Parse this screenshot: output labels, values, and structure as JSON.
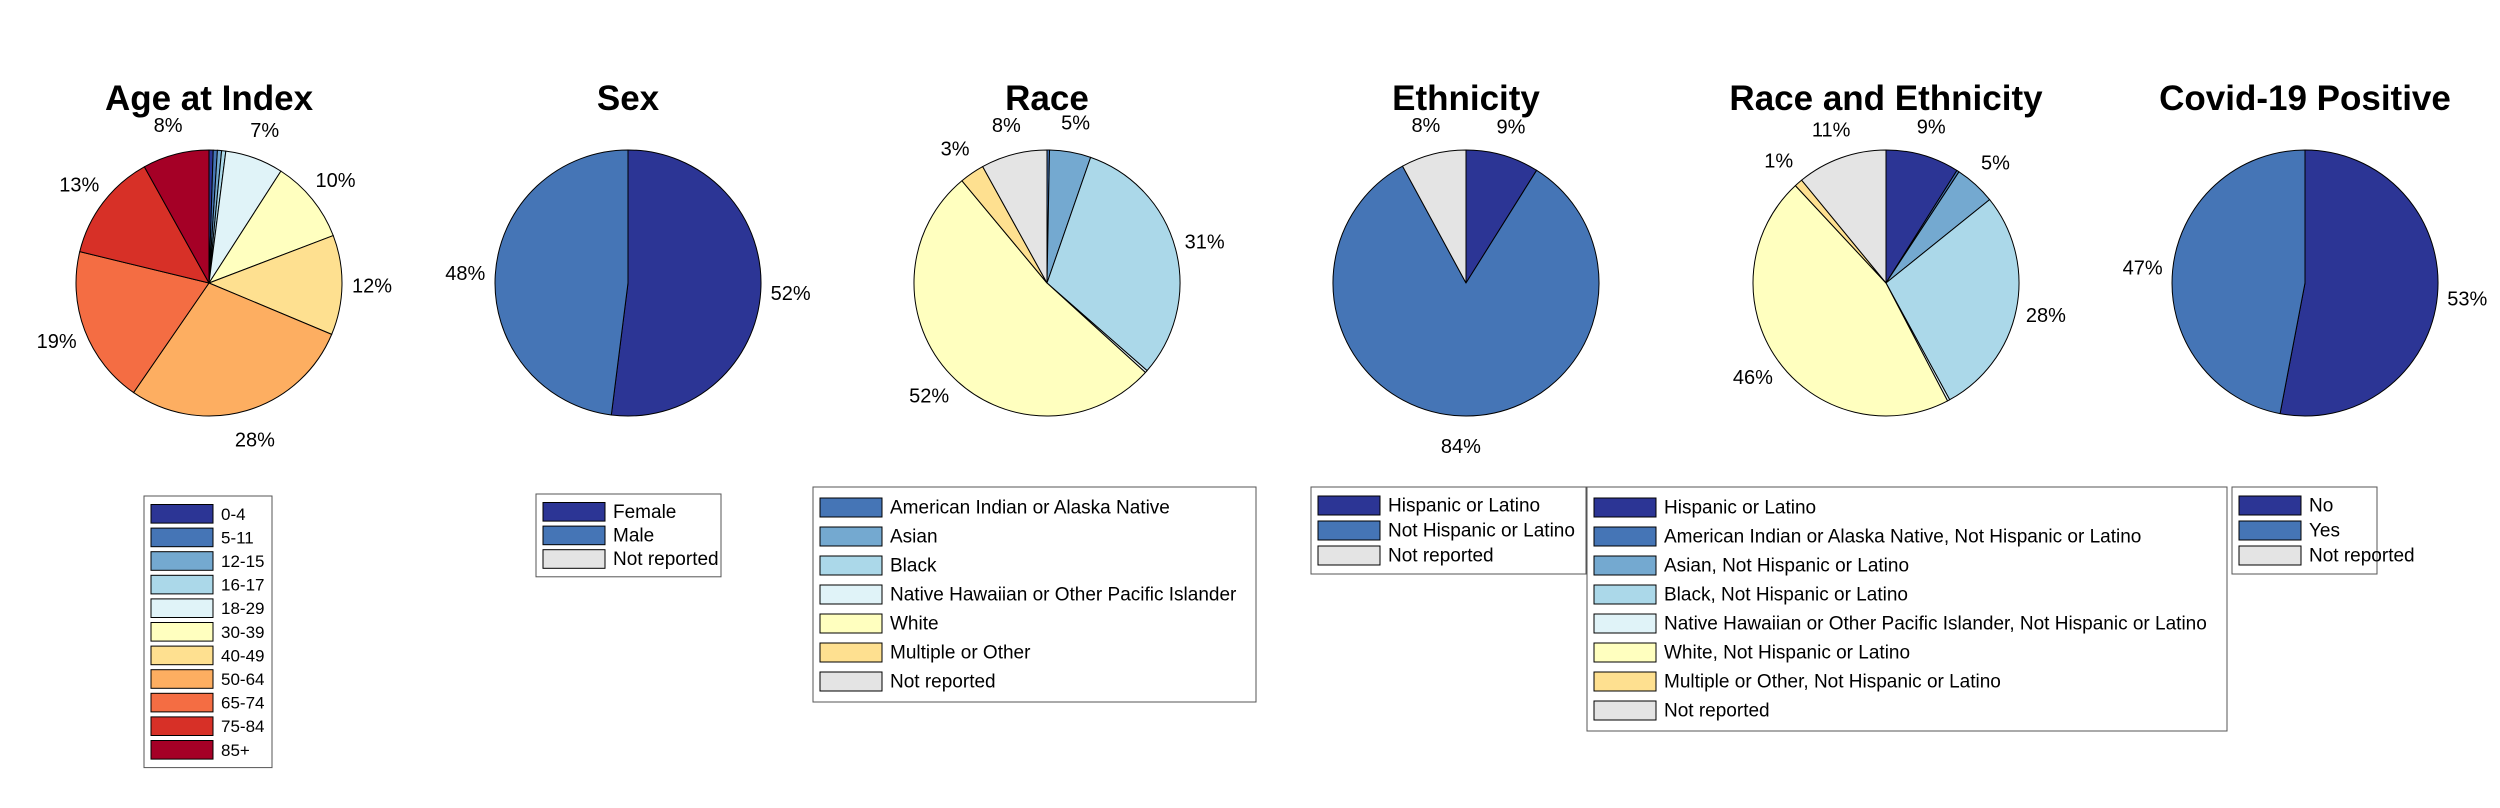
{
  "colors": {
    "navy": "#2c3595",
    "blue": "#4575b6",
    "mid_blue": "#74a9d0",
    "light_blue": "#abd8e9",
    "pale_blue": "#e0f3f8",
    "cream": "#ffffbf",
    "light_orange": "#fee090",
    "orange": "#fdae61",
    "dark_orange": "#f46d43",
    "red": "#d73027",
    "dark_red": "#a50026",
    "gray": "#e4e4e4"
  },
  "chart_data": [
    {
      "type": "pie",
      "title": "Age at Index",
      "categories": [
        "0-4",
        "5-11",
        "12-15",
        "16-17",
        "18-29",
        "30-39",
        "40-49",
        "50-64",
        "65-74",
        "75-84",
        "85+"
      ],
      "values": [
        0.5,
        0.5,
        0.5,
        0.5,
        7,
        10,
        12,
        28,
        19,
        13,
        8
      ],
      "labels": [
        "",
        "",
        "",
        "",
        "7%",
        "10%",
        "12%",
        "28%",
        "19%",
        "13%",
        "8%"
      ],
      "colors": [
        "#2c3595",
        "#4575b6",
        "#74a9d0",
        "#abd8e9",
        "#e0f3f8",
        "#ffffbf",
        "#fee090",
        "#fdae61",
        "#f46d43",
        "#d73027",
        "#a50026"
      ],
      "legend": "below"
    },
    {
      "type": "pie",
      "title": "Sex",
      "categories": [
        "Female",
        "Male",
        "Not reported"
      ],
      "values": [
        52,
        48,
        0
      ],
      "labels": [
        "52%",
        "48%",
        ""
      ],
      "colors": [
        "#2c3595",
        "#4575b6",
        "#e4e4e4"
      ],
      "legend": "below"
    },
    {
      "type": "pie",
      "title": "Race",
      "categories": [
        "American Indian or Alaska Native",
        "Asian",
        "Black",
        "Native Hawaiian or Other Pacific Islander",
        "White",
        "Multiple or Other",
        "Not reported"
      ],
      "values": [
        0.3,
        5,
        31,
        0.3,
        52,
        3,
        8
      ],
      "labels": [
        "",
        "5%",
        "31%",
        "",
        "52%",
        "3%",
        "8%"
      ],
      "colors": [
        "#4575b6",
        "#74a9d0",
        "#abd8e9",
        "#e0f3f8",
        "#ffffbf",
        "#fee090",
        "#e4e4e4"
      ],
      "legend": "below"
    },
    {
      "type": "pie",
      "title": "Ethnicity",
      "categories": [
        "Hispanic or Latino",
        "Not Hispanic or Latino",
        "Not reported"
      ],
      "values": [
        9,
        84,
        8
      ],
      "labels": [
        "9%",
        "84%",
        "8%"
      ],
      "colors": [
        "#2c3595",
        "#4575b6",
        "#e4e4e4"
      ],
      "legend": "below"
    },
    {
      "type": "pie",
      "title": "Race and Ethnicity",
      "categories": [
        "Hispanic or Latino",
        "American Indian or Alaska Native, Not Hispanic or Latino",
        "Asian, Not Hispanic or Latino",
        "Black, Not Hispanic or Latino",
        "Native Hawaiian or Other Pacific Islander, Not Hispanic or Latino",
        "White, Not Hispanic or Latino",
        "Multiple or Other, Not Hispanic or Latino",
        "Not reported"
      ],
      "values": [
        9,
        0.3,
        5,
        28,
        0.3,
        46,
        1,
        11
      ],
      "labels": [
        "9%",
        "",
        "5%",
        "28%",
        "",
        "46%",
        "1%",
        "11%"
      ],
      "colors": [
        "#2c3595",
        "#4575b6",
        "#74a9d0",
        "#abd8e9",
        "#e0f3f8",
        "#ffffbf",
        "#fee090",
        "#e4e4e4"
      ],
      "legend": "below"
    },
    {
      "type": "pie",
      "title": "Covid-19 Positive",
      "categories": [
        "No",
        "Yes",
        "Not reported"
      ],
      "values": [
        53,
        47,
        0
      ],
      "labels": [
        "53%",
        "47%",
        ""
      ],
      "colors": [
        "#2c3595",
        "#4575b6",
        "#e4e4e4"
      ],
      "legend": "below"
    }
  ]
}
